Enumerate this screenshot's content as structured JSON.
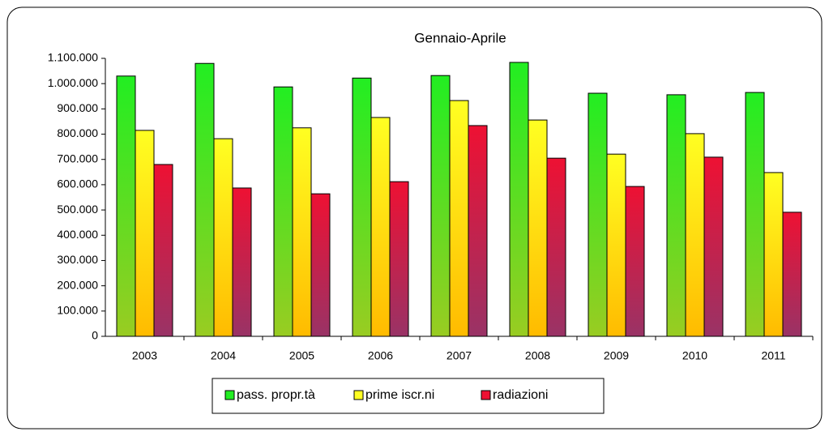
{
  "chart_data": {
    "type": "bar",
    "title": "Gennaio-Aprile",
    "categories": [
      "2003",
      "2004",
      "2005",
      "2006",
      "2007",
      "2008",
      "2009",
      "2010",
      "2011"
    ],
    "series": [
      {
        "name": "pass. propr.tà",
        "color": "#22ee22",
        "color_bottom": "#99cc22",
        "values": [
          1030000,
          1080000,
          987000,
          1022000,
          1032000,
          1084000,
          962000,
          956000,
          965000
        ]
      },
      {
        "name": "prime iscr.ni",
        "color": "#ffff22",
        "color_bottom": "#ffbb00",
        "values": [
          815000,
          782000,
          825000,
          866000,
          933000,
          856000,
          721000,
          802000,
          648000
        ]
      },
      {
        "name": "radiazioni",
        "color": "#ee1133",
        "color_bottom": "#993366",
        "values": [
          680000,
          587000,
          564000,
          612000,
          834000,
          705000,
          593000,
          709000,
          491000
        ]
      }
    ],
    "ylim": [
      0,
      1100000
    ],
    "yticks": [
      0,
      {
        "value": 100000,
        "label": "100.000"
      },
      {
        "value": 200000,
        "label": "200.000"
      },
      {
        "value": 300000,
        "label": "300.000"
      },
      {
        "value": 400000,
        "label": "400.000"
      },
      {
        "value": 500000,
        "label": "500.000"
      },
      {
        "value": 600000,
        "label": "600.000"
      },
      {
        "value": 700000,
        "label": "700.000"
      },
      {
        "value": 800000,
        "label": "800.000"
      },
      {
        "value": 900000,
        "label": "900.000"
      },
      {
        "value": 1000000,
        "label": "1.000.000"
      },
      {
        "value": 1100000,
        "label": "1.100.000"
      }
    ],
    "grid": false,
    "legend": "bottom"
  }
}
